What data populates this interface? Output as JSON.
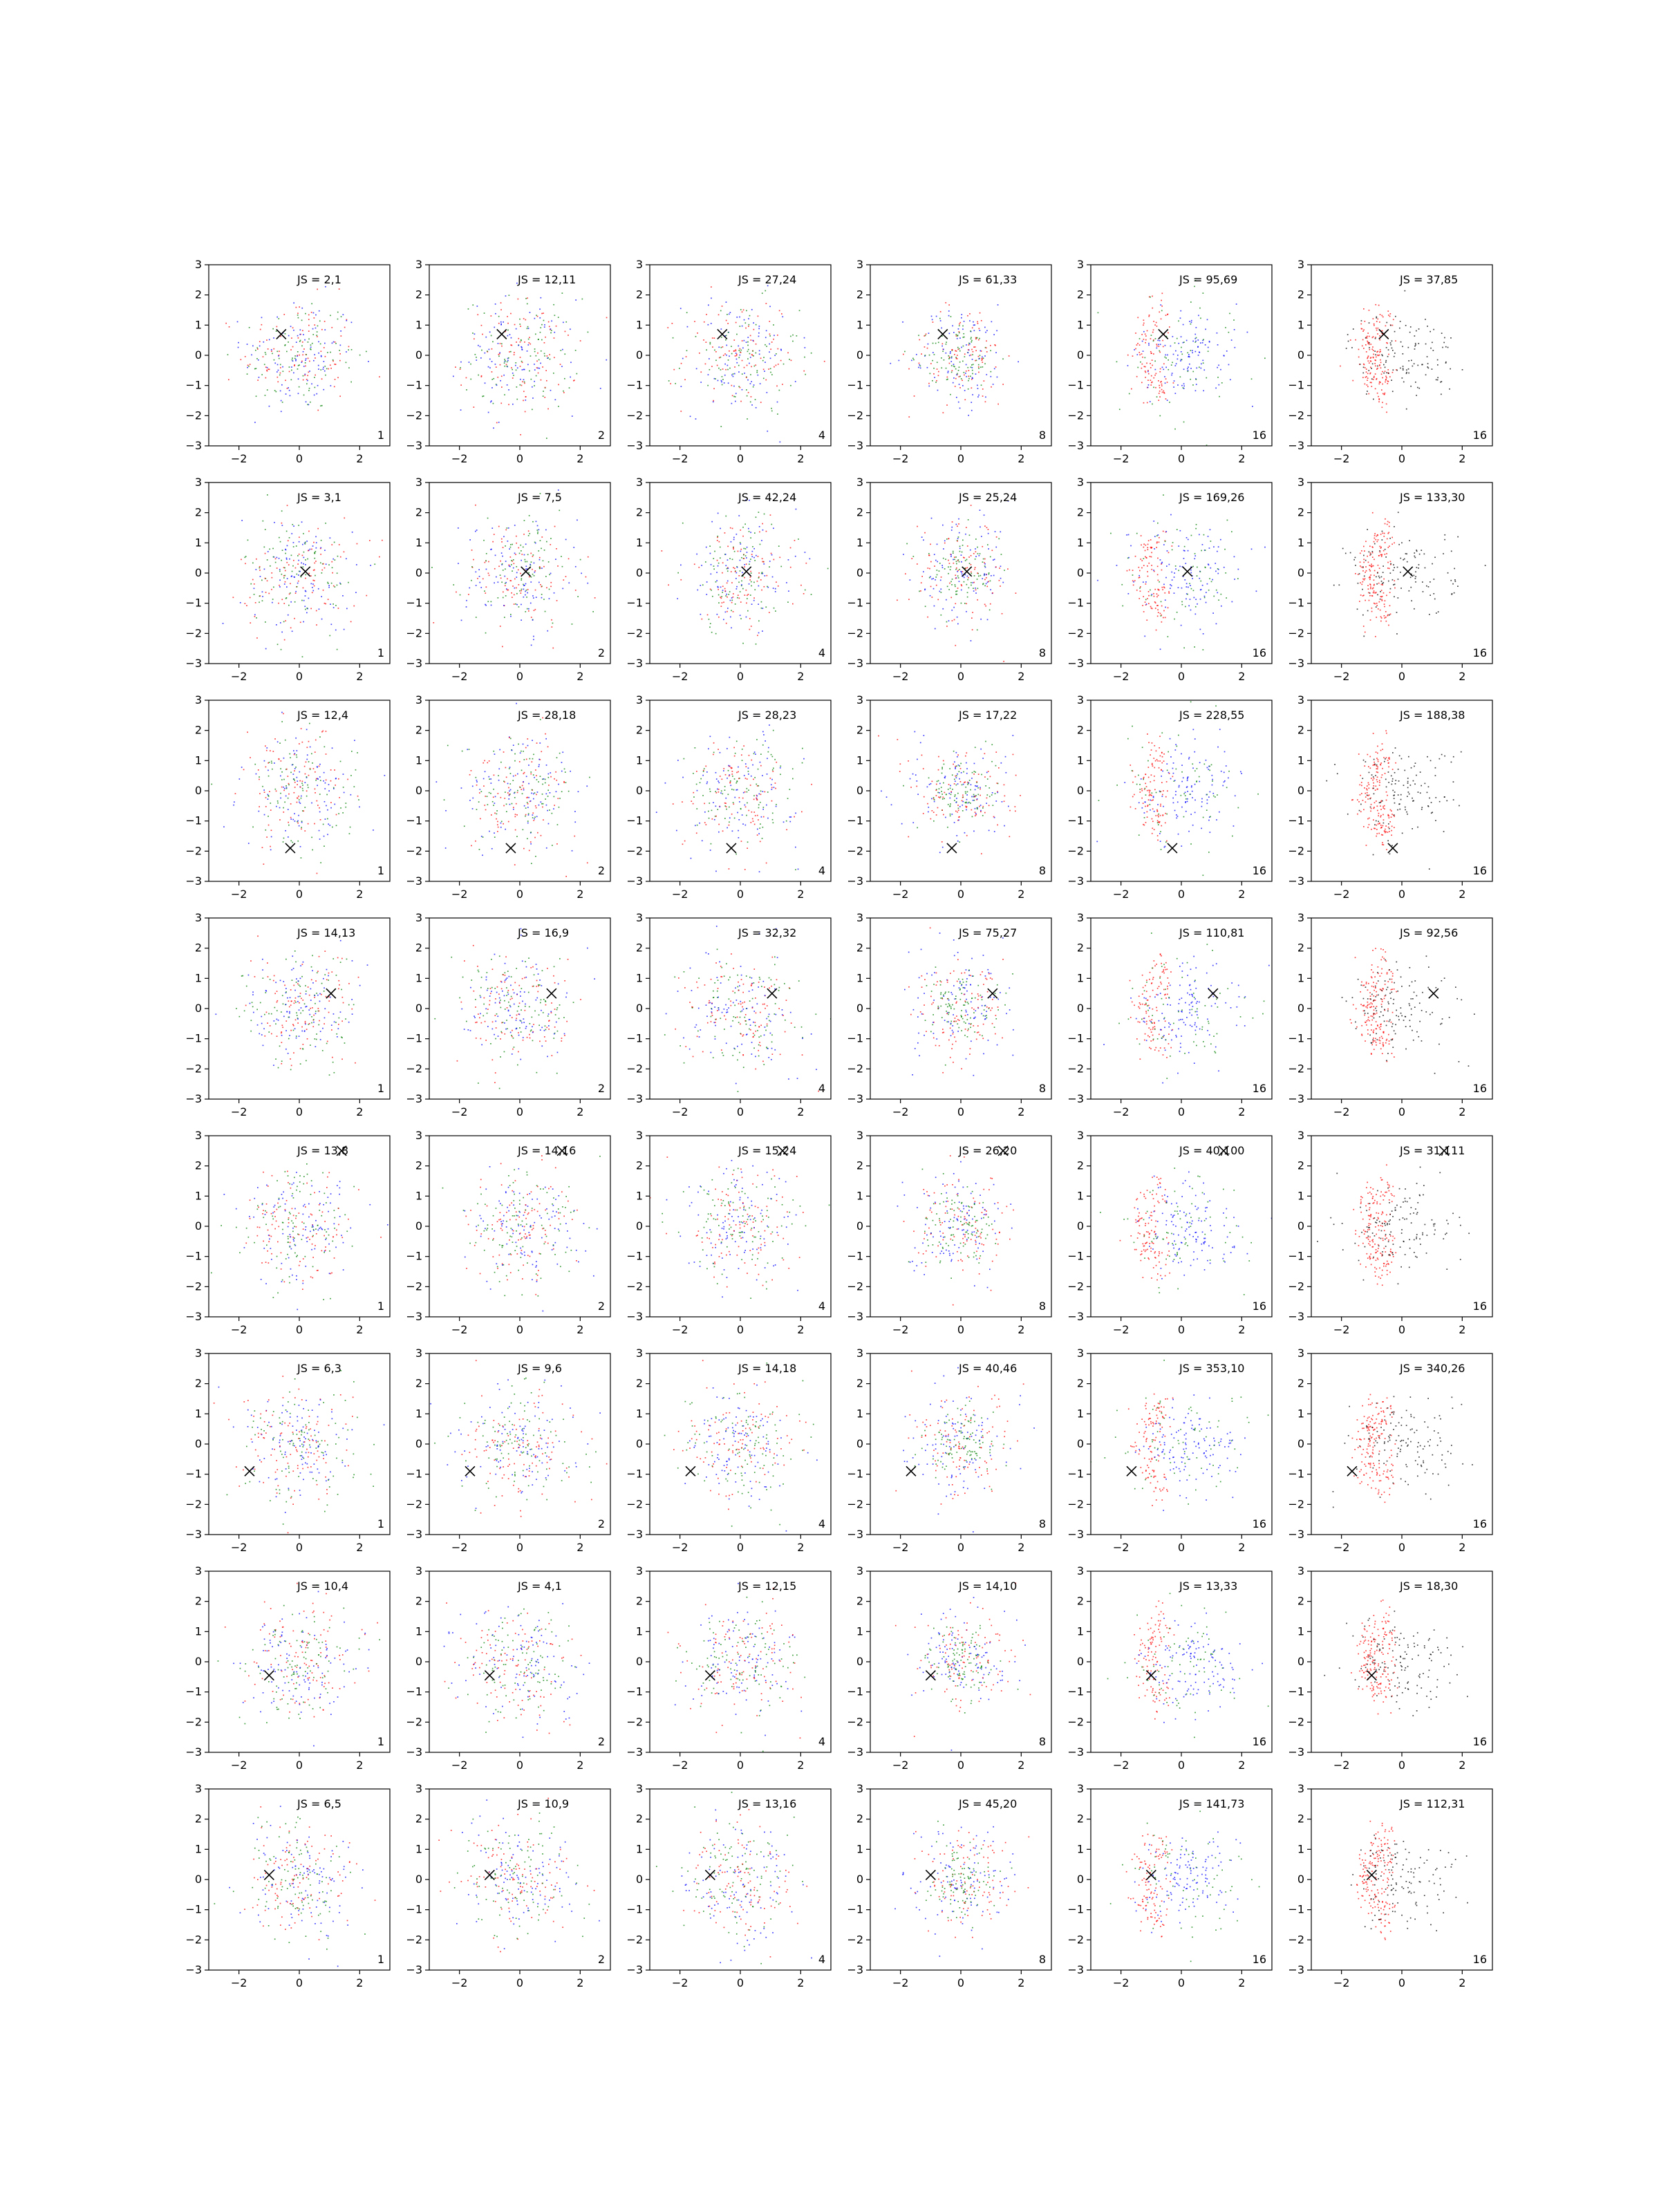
{
  "chart_data": {
    "type": "scatter",
    "xlim": [
      -3,
      3
    ],
    "ylim": [
      -3,
      3
    ],
    "xticks": [
      -2,
      0,
      2
    ],
    "yticks": [
      -3,
      -2,
      -1,
      0,
      1,
      2,
      3
    ],
    "grid": false,
    "colors": {
      "red": "#ff0000",
      "green": "#008000",
      "blue": "#0000ff",
      "black": "#000000"
    },
    "marker_symbol": "×",
    "label_prefix": "JS = ",
    "columns": [
      {
        "corner_label": "1",
        "scatter_style": "mixed"
      },
      {
        "corner_label": "2",
        "scatter_style": "mixed"
      },
      {
        "corner_label": "4",
        "scatter_style": "mixed"
      },
      {
        "corner_label": "8",
        "scatter_style": "mixed-clustered"
      },
      {
        "corner_label": "16",
        "scatter_style": "red-green-blue-clustered"
      },
      {
        "corner_label": "16",
        "scatter_style": "red-black"
      }
    ],
    "rows": [
      {
        "marker": [
          -0.6,
          0.7
        ],
        "js": [
          "2,1",
          "12,11",
          "27,24",
          "61,33",
          "95,69",
          "37,85"
        ]
      },
      {
        "marker": [
          0.2,
          0.05
        ],
        "js": [
          "3,1",
          "7,5",
          "42,24",
          "25,24",
          "169,26",
          "133,30"
        ]
      },
      {
        "marker": [
          -0.3,
          -1.9
        ],
        "js": [
          "12,4",
          "28,18",
          "28,23",
          "17,22",
          "228,55",
          "188,38"
        ]
      },
      {
        "marker": [
          1.05,
          0.5
        ],
        "js": [
          "14,13",
          "16,9",
          "32,32",
          "75,27",
          "110,81",
          "92,56"
        ]
      },
      {
        "marker": [
          1.4,
          2.5
        ],
        "js": [
          "13,8",
          "14,16",
          "15,24",
          "26,20",
          "40,100",
          "31,111"
        ]
      },
      {
        "marker": [
          -1.65,
          -0.9
        ],
        "js": [
          "6,3",
          "9,6",
          "14,18",
          "40,46",
          "353,10",
          "340,26"
        ]
      },
      {
        "marker": [
          -1.0,
          -0.45
        ],
        "js": [
          "10,4",
          "4,1",
          "12,15",
          "14,10",
          "13,33",
          "18,30"
        ]
      },
      {
        "marker": [
          -1.0,
          0.15
        ],
        "js": [
          "6,5",
          "10,9",
          "13,16",
          "45,20",
          "141,73",
          "112,31"
        ]
      }
    ]
  }
}
